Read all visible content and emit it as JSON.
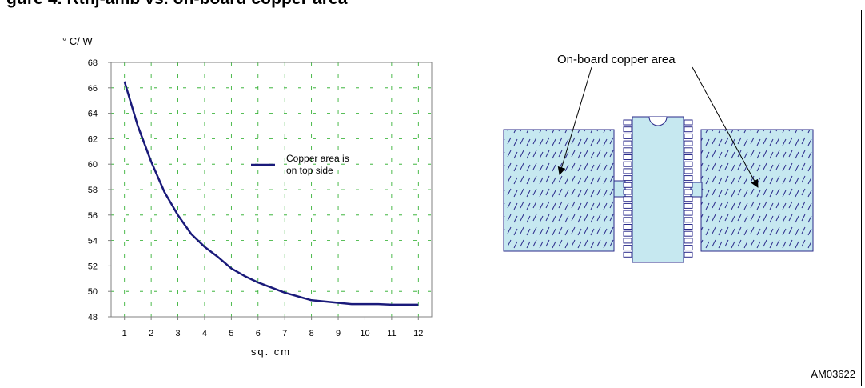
{
  "figure": {
    "title": "gure 4. Rthj-amb vs. on-board copper area",
    "code": "AM03622"
  },
  "chart_data": {
    "type": "line",
    "title": "",
    "xlabel": "sq. cm",
    "ylabel": "° C/ W",
    "xlim": [
      0.5,
      12.5
    ],
    "ylim": [
      48,
      68
    ],
    "xticks": [
      1,
      2,
      3,
      4,
      5,
      6,
      7,
      8,
      9,
      10,
      11,
      12
    ],
    "yticks": [
      48,
      50,
      52,
      54,
      56,
      58,
      60,
      62,
      64,
      66,
      68
    ],
    "grid": true,
    "legend": "center-right",
    "series": [
      {
        "name": "Copper area is on top side",
        "color": "#1a1a7a",
        "x": [
          1,
          1.5,
          2,
          2.5,
          3,
          3.5,
          4,
          4.5,
          5,
          5.5,
          6,
          6.5,
          7,
          7.5,
          8,
          8.5,
          9,
          9.5,
          10,
          10.5,
          11,
          11.5,
          12
        ],
        "y": [
          66.5,
          63,
          60.2,
          57.8,
          56,
          54.5,
          53.5,
          52.7,
          51.8,
          51.2,
          50.7,
          50.3,
          49.9,
          49.6,
          49.3,
          49.2,
          49.1,
          49.0,
          49.0,
          49.0,
          48.95,
          48.95,
          48.95
        ]
      }
    ]
  },
  "diagram": {
    "label": "On-board copper area",
    "fill_color": "#c6e8f0",
    "hatch_color": "#2a2a8a"
  }
}
